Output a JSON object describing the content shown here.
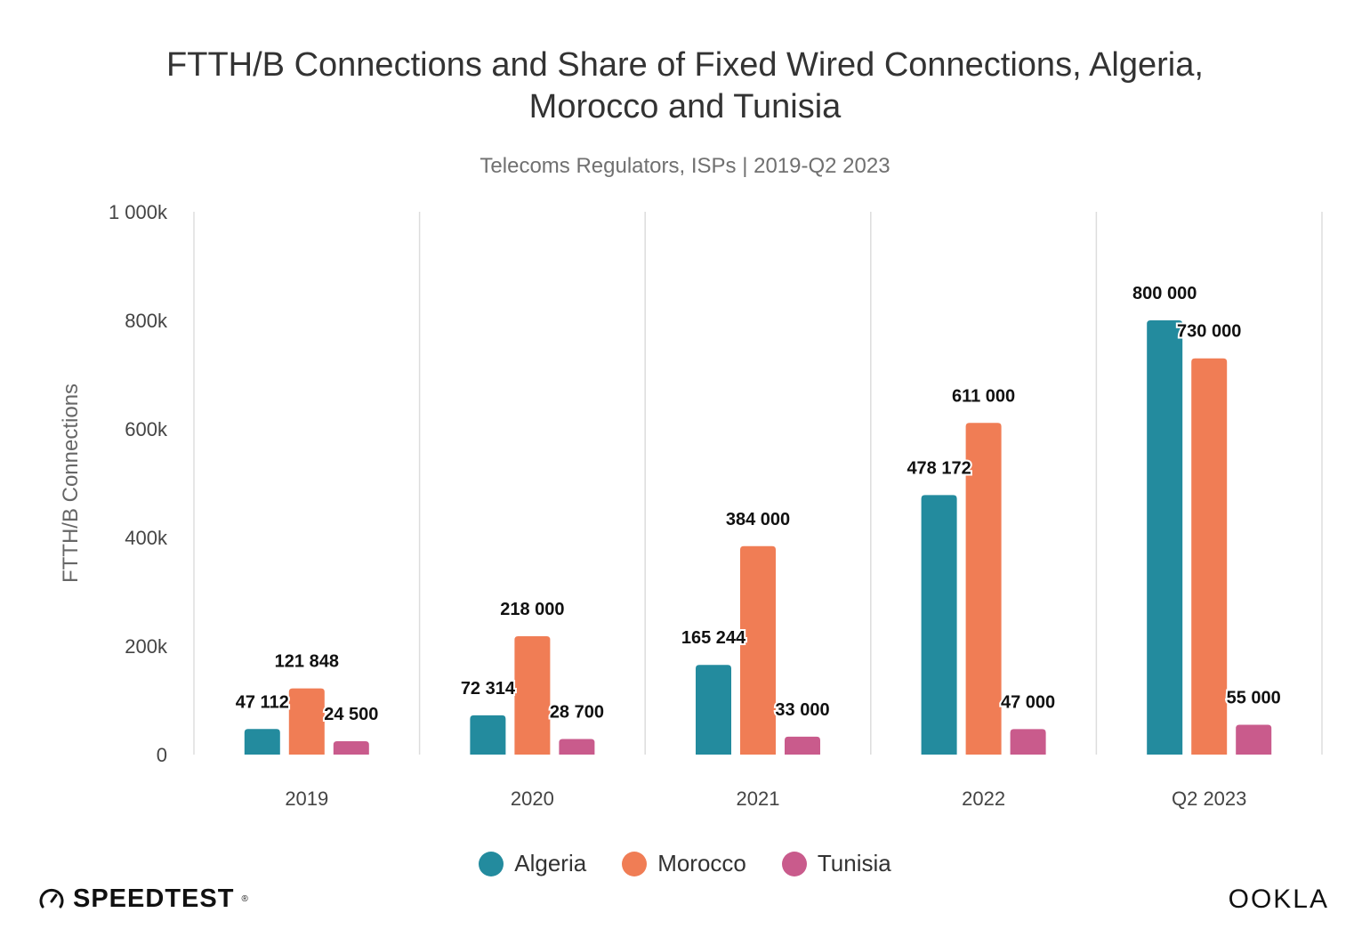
{
  "title_lines": [
    "FTTH/B Connections and Share of Fixed Wired Connections, Algeria,",
    "Morocco and Tunisia"
  ],
  "subtitle": "Telecoms Regulators, ISPs | 2019-Q2 2023",
  "chart_data": {
    "type": "bar",
    "title": "FTTH/B Connections and Share of Fixed Wired Connections, Algeria, Morocco and Tunisia",
    "subtitle": "Telecoms Regulators, ISPs | 2019-Q2 2023",
    "categories": [
      "2019",
      "2020",
      "2021",
      "2022",
      "Q2 2023"
    ],
    "series": [
      {
        "name": "Algeria",
        "color": "#238b9e",
        "values": [
          47112,
          72314,
          165244,
          478172,
          800000
        ],
        "labels": [
          "47 112",
          "72 314",
          "165 244",
          "478 172",
          "800 000"
        ]
      },
      {
        "name": "Morocco",
        "color": "#f07d55",
        "values": [
          121848,
          218000,
          384000,
          611000,
          730000
        ],
        "labels": [
          "121 848",
          "218 000",
          "384 000",
          "611 000",
          "730 000"
        ]
      },
      {
        "name": "Tunisia",
        "color": "#c95b8c",
        "values": [
          24500,
          28700,
          33000,
          47000,
          55000
        ],
        "labels": [
          "24 500",
          "28 700",
          "33 000",
          "47 000",
          "55 000"
        ]
      }
    ],
    "ylabel": "FTTH/B Connections",
    "xlabel": "",
    "ylim": [
      0,
      1000000
    ],
    "yticks": [
      0,
      200000,
      400000,
      600000,
      800000,
      1000000
    ],
    "ytick_labels": [
      "0",
      "200k",
      "400k",
      "600k",
      "800k",
      "1 000k"
    ],
    "grid": "vertical separators between categories",
    "legend_position": "bottom"
  },
  "legend": [
    {
      "name": "Algeria",
      "color": "#238b9e"
    },
    {
      "name": "Morocco",
      "color": "#f07d55"
    },
    {
      "name": "Tunisia",
      "color": "#c95b8c"
    }
  ],
  "brand_left": "SPEEDTEST",
  "brand_left_mark": "®",
  "brand_right": "OOKLA"
}
